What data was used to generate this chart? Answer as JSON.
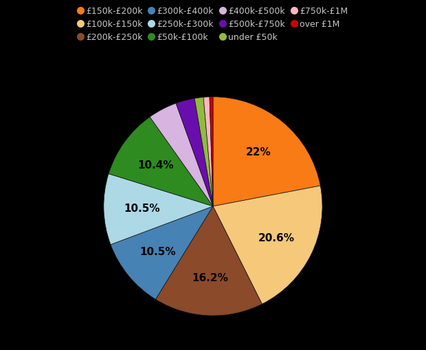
{
  "labels": [
    "£150k-£200k",
    "£100k-£150k",
    "£200k-£250k",
    "£300k-£400k",
    "£250k-£300k",
    "£50k-£100k",
    "£400k-£500k",
    "£500k-£750k",
    "under £50k",
    "£750k-£1M",
    "over £1M"
  ],
  "values": [
    22.0,
    20.6,
    16.2,
    10.5,
    10.5,
    10.4,
    4.3,
    2.8,
    1.3,
    0.9,
    0.5
  ],
  "colors": [
    "#f97b16",
    "#f5c87a",
    "#8b4a2a",
    "#4682b4",
    "#add8e6",
    "#2e8b20",
    "#d8b4e0",
    "#6a0dad",
    "#8fbc3f",
    "#ffb6c1",
    "#cc0000"
  ],
  "show_pct_indices": [
    0,
    1,
    2,
    3,
    4,
    5
  ],
  "pct_labels": [
    "22%",
    "20.6%",
    "16.2%",
    "10.5%",
    "10.5%",
    "10.4%"
  ],
  "background_color": "#000000",
  "text_color": "#c8c8c8",
  "legend_fontsize": 9,
  "pct_fontsize": 11
}
